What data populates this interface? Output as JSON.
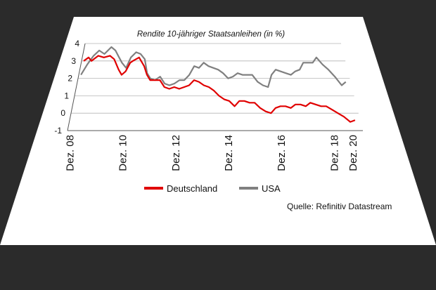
{
  "colors": {
    "background": "#2b2b2b",
    "card": "#ffffff",
    "deutschland": "#e00000",
    "usa": "#808080",
    "grid": "#b5b5b5",
    "text": "#111111"
  },
  "source": "Quelle: Refinitiv Datastream",
  "chart_data": {
    "type": "line",
    "title": "Rendite 10-jähriger Staatsanleihen (in %)",
    "xlabel": "",
    "ylabel": "",
    "xlim": [
      2008.83,
      2020.0
    ],
    "ylim": [
      -1,
      4
    ],
    "y_ticks": [
      "4",
      "3",
      "2",
      "1",
      "0",
      "-1"
    ],
    "x_ticks": [
      "Dez. 08",
      "Dez. 10",
      "Dez. 12",
      "Dez. 14",
      "Dez. 16",
      "Dez. 18",
      "Dez. 20"
    ],
    "grid": "horizontal",
    "legend_position": "bottom",
    "series": [
      {
        "name": "Deutschland",
        "color": "#e00000",
        "x": [
          2008.92,
          2009.1,
          2009.25,
          2009.5,
          2009.75,
          2010.0,
          2010.2,
          2010.45,
          2010.6,
          2010.75,
          2010.9,
          2011.0,
          2011.25,
          2011.5,
          2011.65,
          2011.8,
          2012.0,
          2012.2,
          2012.4,
          2012.6,
          2012.8,
          2013.0,
          2013.2,
          2013.4,
          2013.6,
          2013.8,
          2014.0,
          2014.2,
          2014.4,
          2014.6,
          2014.8,
          2015.0,
          2015.2,
          2015.4,
          2015.6,
          2015.8,
          2016.0,
          2016.2,
          2016.4,
          2016.6,
          2016.8,
          2017.0,
          2017.2,
          2017.4,
          2017.6,
          2017.8,
          2018.0,
          2018.2,
          2018.4,
          2018.6,
          2018.8,
          2019.0,
          2019.2,
          2019.4,
          2019.6,
          2019.8
        ],
        "values": [
          3.0,
          3.2,
          3.0,
          3.3,
          3.2,
          3.3,
          3.1,
          2.5,
          2.2,
          2.4,
          2.9,
          3.0,
          3.2,
          2.7,
          2.2,
          1.9,
          1.9,
          1.9,
          1.5,
          1.4,
          1.5,
          1.4,
          1.5,
          1.6,
          1.9,
          1.8,
          1.6,
          1.5,
          1.3,
          1.0,
          0.8,
          0.7,
          0.4,
          0.7,
          0.7,
          0.6,
          0.6,
          0.3,
          0.1,
          0.0,
          0.3,
          0.4,
          0.4,
          0.3,
          0.5,
          0.5,
          0.4,
          0.6,
          0.5,
          0.4,
          0.4,
          0.2,
          0.0,
          -0.2,
          -0.5,
          -0.4
        ]
      },
      {
        "name": "USA",
        "color": "#808080",
        "x": [
          2008.92,
          2009.1,
          2009.3,
          2009.5,
          2009.75,
          2010.0,
          2010.2,
          2010.35,
          2010.55,
          2010.75,
          2010.9,
          2011.1,
          2011.3,
          2011.5,
          2011.65,
          2011.8,
          2012.0,
          2012.2,
          2012.4,
          2012.6,
          2012.8,
          2013.0,
          2013.2,
          2013.4,
          2013.6,
          2013.8,
          2014.0,
          2014.2,
          2014.4,
          2014.6,
          2014.8,
          2015.0,
          2015.2,
          2015.4,
          2015.6,
          2015.8,
          2016.0,
          2016.2,
          2016.4,
          2016.6,
          2016.8,
          2017.0,
          2017.2,
          2017.4,
          2017.6,
          2017.8,
          2018.0,
          2018.2,
          2018.4,
          2018.6,
          2018.8,
          2019.0,
          2019.2,
          2019.4,
          2019.6,
          2019.8
        ],
        "values": [
          2.2,
          2.8,
          3.3,
          3.6,
          3.4,
          3.8,
          3.6,
          3.3,
          2.9,
          2.6,
          3.2,
          3.5,
          3.4,
          3.1,
          2.3,
          2.0,
          1.9,
          2.1,
          1.7,
          1.6,
          1.7,
          1.9,
          1.9,
          2.2,
          2.7,
          2.6,
          2.9,
          2.7,
          2.6,
          2.5,
          2.3,
          2.0,
          2.1,
          2.3,
          2.2,
          2.2,
          2.2,
          1.8,
          1.6,
          1.5,
          2.2,
          2.5,
          2.4,
          2.3,
          2.2,
          2.4,
          2.5,
          2.9,
          2.9,
          2.9,
          3.2,
          2.8,
          2.5,
          2.1,
          1.6,
          1.8
        ]
      }
    ]
  }
}
